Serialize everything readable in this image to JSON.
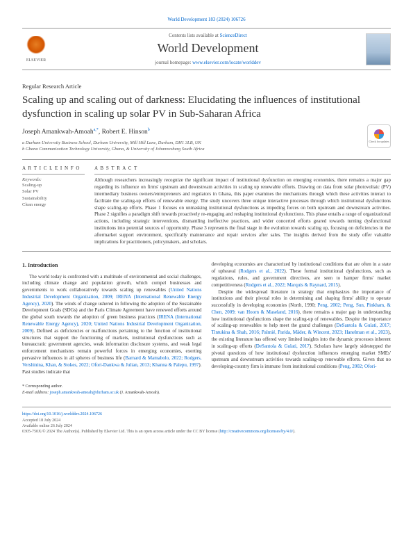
{
  "top_citation": "World Development 183 (2024) 106726",
  "header": {
    "contents_prefix": "Contents lists available at ",
    "contents_link": "ScienceDirect",
    "journal_name": "World Development",
    "homepage_prefix": "journal homepage: ",
    "homepage_link": "www.elsevier.com/locate/worlddev",
    "publisher": "ELSEVIER"
  },
  "check_updates_label": "Check for updates",
  "article_type": "Regular Research Article",
  "title": "Scaling up and scaling out of darkness: Elucidating the influences of institutional dysfunction in scaling up solar PV in Sub-Saharan Africa",
  "authors_html": "Joseph Amankwah-Amoah",
  "author_sup1": "a,*",
  "author2": ", Robert E. Hinson",
  "author_sup2": "b",
  "affiliations": {
    "a": "a Durham University Business School, Durham University, Mill Hill Lane, Durham, DH1 3LB, UK",
    "b": "b Ghana Communication Technology University, Ghana, & University of Johannesburg South Africa"
  },
  "article_info_heading": "A R T I C L E  I N F O",
  "keywords_label": "Keywords:",
  "keywords": [
    "Scaling-up",
    "Solar PV",
    "Sustainability",
    "Clean energy"
  ],
  "abstract_heading": "A B S T R A C T",
  "abstract": "Although researchers increasingly recognize the significant impact of institutional dysfunction on emerging economies, there remains a major gap regarding its influence on firms' upstream and downstream activities in scaling up renewable efforts. Drawing on data from solar photovoltaic (PV) intermediary business owners/entrepreneurs and regulators in Ghana, this paper examines the mechanisms through which these activities interact to facilitate the scaling-up efforts of renewable energy. The study uncovers three unique interactive processes through which institutional dysfunctions shape scaling-up efforts. Phase 1 focuses on unmasking institutional dysfunctions as impeding forces on both upstream and downstream activities. Phase 2 signifies a paradigm shift towards proactively re-engaging and reshaping institutional dysfunctions. This phase entails a range of organizational actions, including strategic interventions, dismantling ineffective practices, and wider concerted efforts geared towards turning dysfunctional institutions into potential sources of opportunity. Phase 3 represents the final stage in the evolution towards scaling up, focusing on deficiencies in the aftermarket support environment, specifically maintenance and repair services after sales. The insights derived from the study offer valuable implications for practitioners, policymakers, and scholars.",
  "section1_heading": "1. Introduction",
  "col1_p1_a": "The world today is confronted with a multitude of environmental and social challenges, including climate change and population growth, which compel businesses and governments to work collaboratively towards scaling up renewables (",
  "col1_p1_link1": "United Nations Industrial Development Organization, 2009; IRENA (International Renewable Energy Agency), 2020",
  "col1_p1_b": "). The winds of change ushered in following the adoption of the Sustainable Development Goals (SDGs) and the Paris Climate Agreement have renewed efforts around the global south towards the adoption of green business practices (",
  "col1_p1_link2": "IRENA (International Renewable Energy Agency), 2020; United Nations Industrial Development Organization, 2009",
  "col1_p1_c": "). Defined as deficiencies or malfunctions pertaining to the function of institutional structures that support the functioning of markets, institutional dysfunctions such as bureaucratic government agencies, weak information disclosure systems, and weak legal enforcement mechanisms remain powerful forces in emerging economies, exerting pervasive influences in all spheres of business life (",
  "col1_p1_link3": "Barnard & Mamabolo, 2022; Rodgers, Vershinina, Khan, & Stokes, 2022; Ofori-Dankwa & Julian, 2013; Khanna & Palepu, 1997",
  "col1_p1_d": "). Past studies indicate that",
  "col2_p1_a": "developing economies are characterized by institutional conditions that are often in a state of upheaval (",
  "col2_p1_link1": "Rodgers et al., 2022",
  "col2_p1_b": "). These formal institutional dysfunctions, such as regulations, rules, and government directives, are seen to hamper firms' market competitiveness (",
  "col2_p1_link2": "Rodgers et al., 2022; Marquis & Raynard, 2015",
  "col2_p1_c": ").",
  "col2_p2_a": "Despite the widespread literature in strategy that emphasizes the importance of institutions and their pivotal roles in determining and shaping firms' ability to operate successfully in developing economies (North, 1990; ",
  "col2_p2_link1": "Peng, 2002; Peng, Sun, Pinkham, & Chen, 2009; van Hoorn & Maseland, 2016",
  "col2_p2_b": "), there remains a major gap in understanding how institutional dysfunctions shape the scaling-up of renewables. Despite the importance of scaling-up renewables to help meet the grand challenges (",
  "col2_p2_link2": "DeSantola & Gulati, 2017; Tintukina & Shah, 2016; Palmié, Parida, Mäder, & Wincent, 2023; Hanelman et al., 2023",
  "col2_p2_c": "), the existing literature has offered very limited insights into the dynamic processes inherent in scaling-up efforts (",
  "col2_p2_link3": "DeSantola & Gulati, 2017",
  "col2_p2_d": "). Scholars have largely sidestepped the pivotal questions of how institutional dysfunction influences emerging market SMEs' upstream and downstream activities towards scaling-up renewable efforts. Given that no developing-country firm is immune from institutional conditions (",
  "col2_p2_link4": "Peng, 2002; Ofori-",
  "corresponding": {
    "star": "* Corresponding author.",
    "email_label": "E-mail address: ",
    "email": "joseph.amankwah-amoah@durham.ac.uk",
    "email_suffix": " (J. Amankwah-Amoah)."
  },
  "footer": {
    "doi": "https://doi.org/10.1016/j.worlddev.2024.106726",
    "accepted": "Accepted 18 July 2024",
    "online": "Available online 26 July 2024",
    "copyright_prefix": "0305-750X/© 2024 The Author(s). Published by Elsevier Ltd. This is an open access article under the CC BY license (",
    "cc_link": "http://creativecommons.org/licenses/by/4.0/",
    "copyright_suffix": ")."
  }
}
